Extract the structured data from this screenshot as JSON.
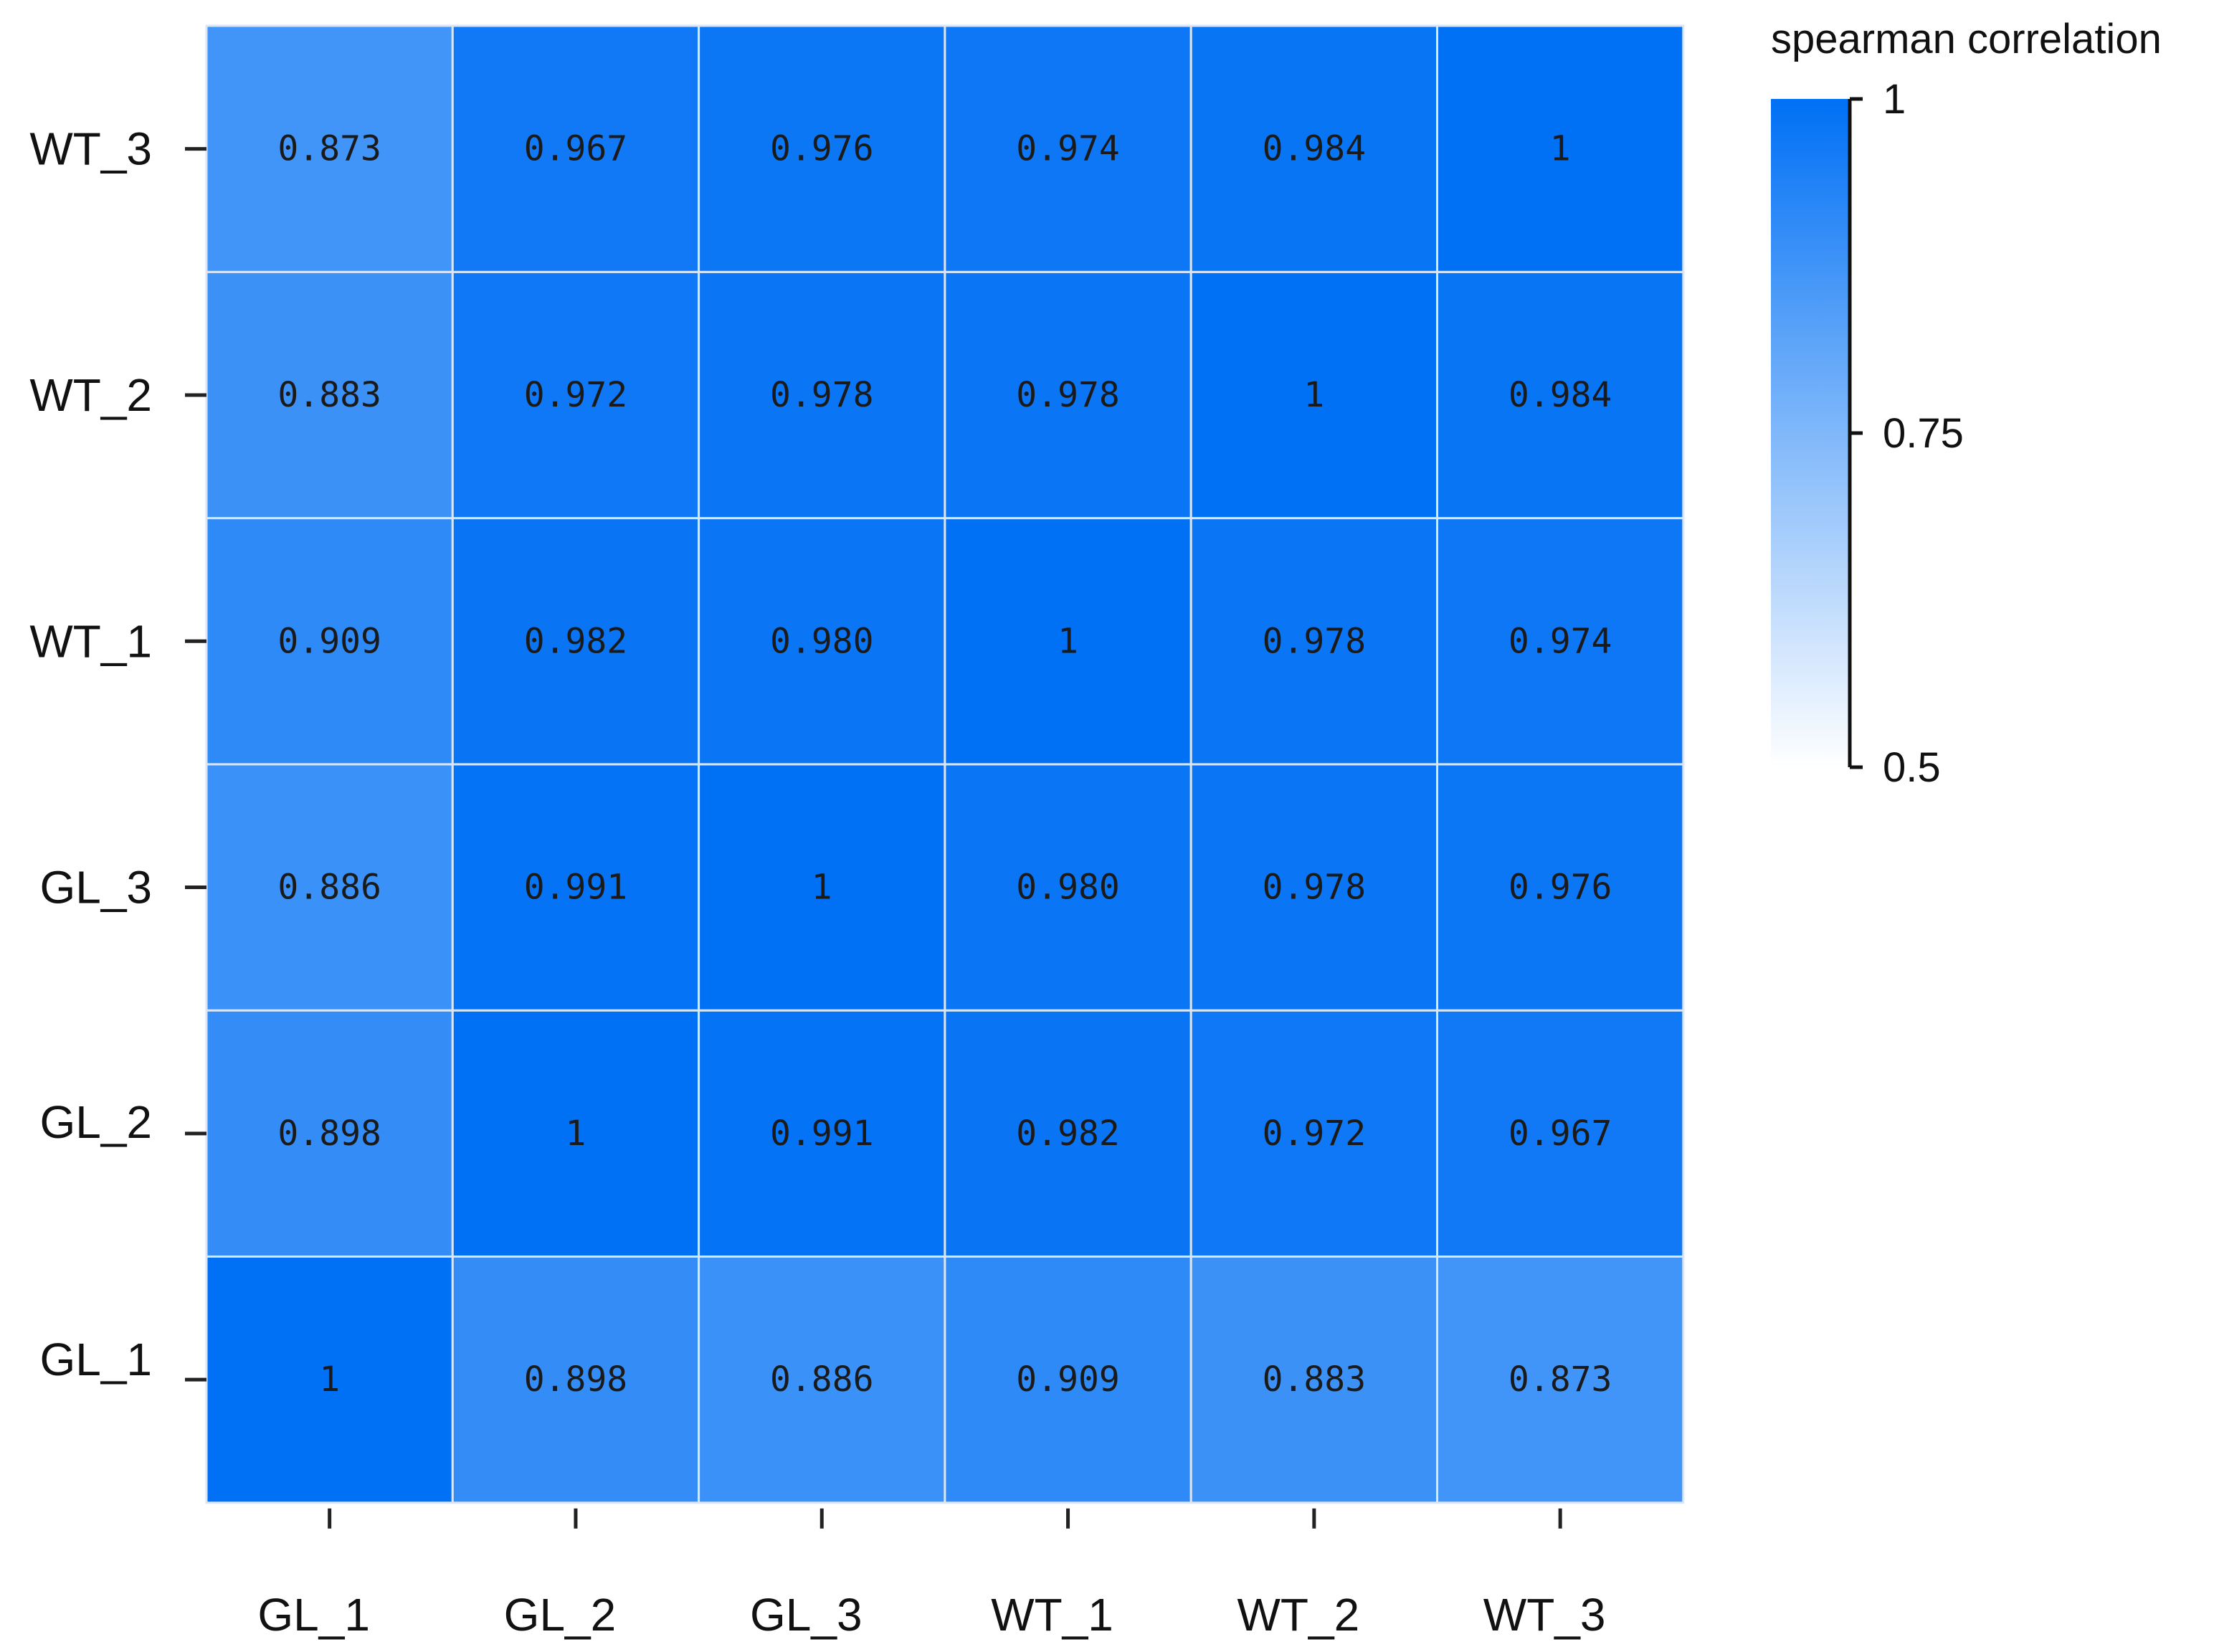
{
  "chart_data": {
    "type": "heatmap",
    "title": "",
    "xlabel": "",
    "ylabel": "",
    "x_categories": [
      "GL_1",
      "GL_2",
      "GL_3",
      "WT_1",
      "WT_2",
      "WT_3"
    ],
    "y_categories": [
      "GL_1",
      "GL_2",
      "GL_3",
      "WT_1",
      "WT_2",
      "WT_3"
    ],
    "values": [
      [
        1,
        0.898,
        0.886,
        0.909,
        0.883,
        0.873
      ],
      [
        0.898,
        1,
        0.991,
        0.982,
        0.972,
        0.967
      ],
      [
        0.886,
        0.991,
        1,
        0.98,
        0.978,
        0.976
      ],
      [
        0.909,
        0.982,
        0.98,
        1,
        0.978,
        0.974
      ],
      [
        0.883,
        0.972,
        0.978,
        0.978,
        1,
        0.984
      ],
      [
        0.873,
        0.967,
        0.976,
        0.974,
        0.984,
        1
      ]
    ],
    "value_labels": [
      [
        "1",
        "0.898",
        "0.886",
        "0.909",
        "0.883",
        "0.873"
      ],
      [
        "0.898",
        "1",
        "0.991",
        "0.982",
        "0.972",
        "0.967"
      ],
      [
        "0.886",
        "0.991",
        "1",
        "0.980",
        "0.978",
        "0.976"
      ],
      [
        "0.909",
        "0.982",
        "0.980",
        "1",
        "0.978",
        "0.974"
      ],
      [
        "0.883",
        "0.972",
        "0.978",
        "0.978",
        "1",
        "0.984"
      ],
      [
        "0.873",
        "0.967",
        "0.976",
        "0.974",
        "0.984",
        "1"
      ]
    ],
    "colorbar": {
      "title": "spearman correlation",
      "min": 0.5,
      "max": 1,
      "ticks": [
        1,
        0.75,
        0.5
      ],
      "tick_labels": [
        "1",
        "0.75",
        "0.5"
      ],
      "color_low": "#FFFFFF",
      "color_high": "#0070F5",
      "placement": "top-right"
    }
  }
}
